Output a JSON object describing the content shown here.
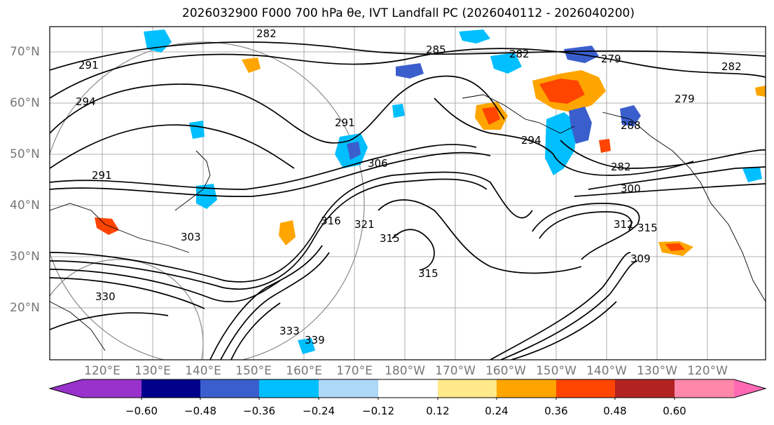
{
  "figure": {
    "title": "2026032900 F000 700 hPa θe, IVT Landfall PC (2026040112 - 2026040200)"
  },
  "map": {
    "lat_labels": [
      "70°N",
      "60°N",
      "50°N",
      "40°N",
      "30°N",
      "20°N"
    ],
    "lon_labels": [
      "120°E",
      "130°E",
      "140°E",
      "150°E",
      "160°E",
      "170°E",
      "180°W",
      "170°W",
      "160°W",
      "150°W",
      "140°W",
      "130°W",
      "120°W"
    ],
    "contour_labels": [
      "282",
      "285",
      "282",
      "279",
      "291",
      "294",
      "291",
      "306",
      "294",
      "282",
      "300",
      "315",
      "321",
      "316",
      "315",
      "312",
      "315",
      "330",
      "333",
      "339",
      "309",
      "279",
      "282",
      "288",
      "303",
      "291"
    ]
  },
  "colorbar": {
    "colors": [
      "#9932cc",
      "#00008b",
      "#3a5fcd",
      "#00bfff",
      "#add8f6",
      "#ffffff",
      "#ffe98a",
      "#ffa500",
      "#ff4500",
      "#b22222",
      "#ff88aa",
      "#ff69b4"
    ],
    "tick_labels": [
      "−0.60",
      "−0.48",
      "−0.36",
      "−0.24",
      "−0.12",
      "0.12",
      "0.24",
      "0.36",
      "0.48",
      "0.60"
    ]
  }
}
